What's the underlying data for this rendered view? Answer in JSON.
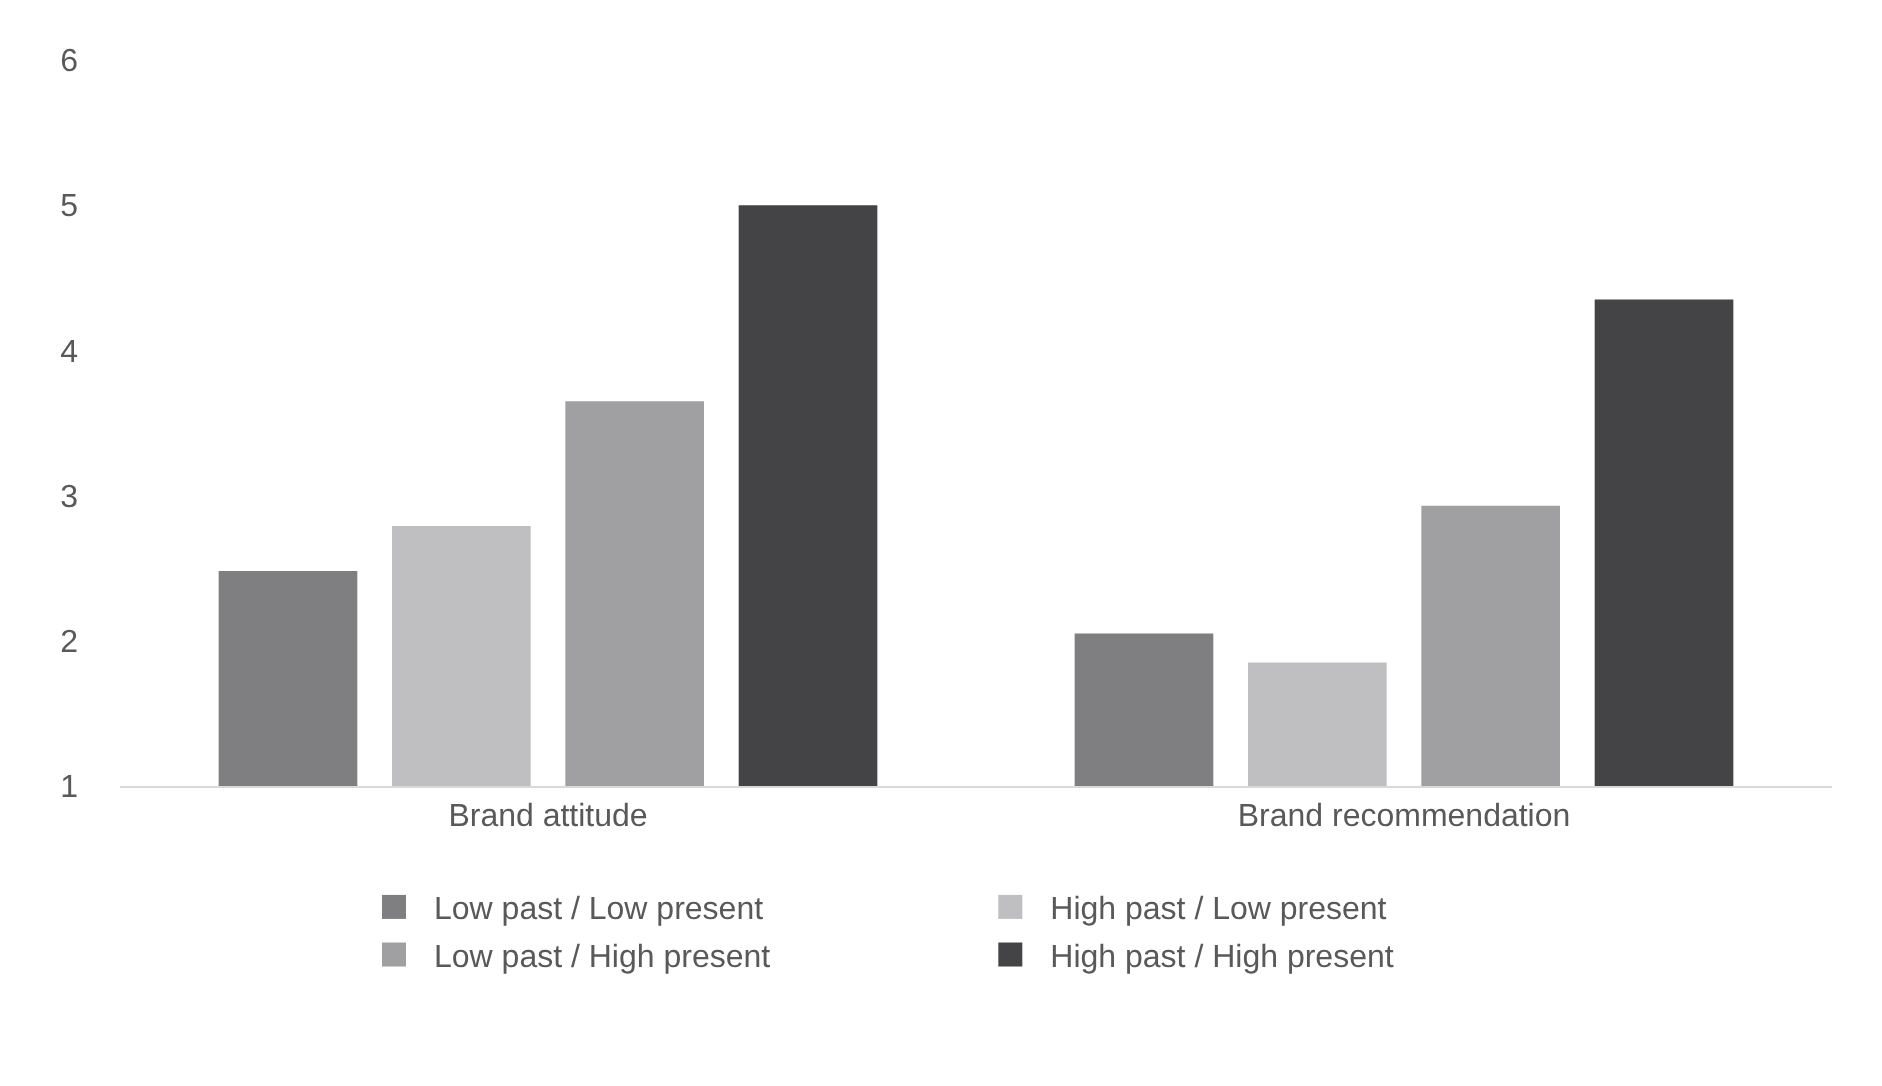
{
  "chart_data": {
    "type": "bar",
    "categories": [
      "Brand attitude",
      "Brand recommendation"
    ],
    "series": [
      {
        "name": "Low past / Low present",
        "color": "#7f7f81",
        "values": [
          2.48,
          2.05
        ]
      },
      {
        "name": "High past / Low present",
        "color": "#bfbfc1",
        "values": [
          2.79,
          1.85
        ]
      },
      {
        "name": "Low past / High present",
        "color": "#a0a0a2",
        "values": [
          3.65,
          2.93
        ]
      },
      {
        "name": "High past / High present",
        "color": "#444446",
        "values": [
          5.0,
          4.35
        ]
      }
    ],
    "ylim": [
      1,
      6
    ],
    "yticks": [
      1,
      2,
      3,
      4,
      5,
      6
    ],
    "grid": false,
    "legend": "bottom"
  }
}
